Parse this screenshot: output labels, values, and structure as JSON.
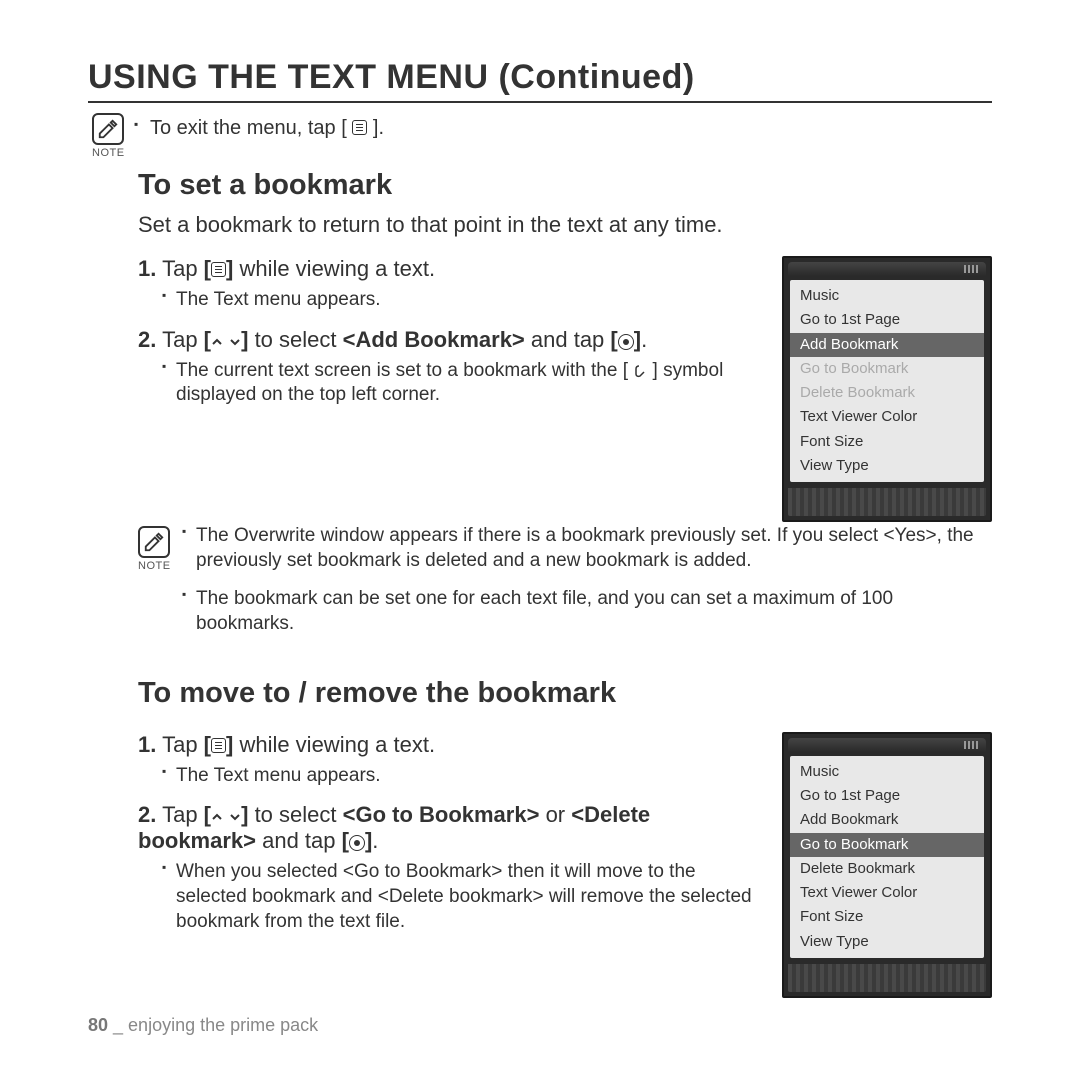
{
  "page_title": "USING THE TEXT MENU (Continued)",
  "top_note": {
    "label": "NOTE",
    "text_parts": [
      "To exit the menu, tap [",
      "]."
    ]
  },
  "section1": {
    "heading": "To set a bookmark",
    "intro": "Set a bookmark to return to that point in the text at any time.",
    "step1_num": "1.",
    "step1_a": "Tap ",
    "step1_b": " while viewing a text.",
    "step1_sub": "The Text menu appears.",
    "step2_num": "2.",
    "step2_a": "Tap ",
    "step2_b": " to select ",
    "step2_bold": "<Add Bookmark>",
    "step2_c": " and tap ",
    "step2_d": ".",
    "step2_sub_a": "The current text screen is set to a bookmark with the [",
    "step2_sub_b": "] symbol displayed on the top left corner.",
    "note_label": "NOTE",
    "note_bullet1": "The Overwrite window appears if there is a bookmark previously set. If you select <Yes>, the previously set bookmark is deleted and a new bookmark is added.",
    "note_bullet2": "The bookmark can be set one for each text file, and you can set a maximum of 100 bookmarks."
  },
  "device1": {
    "items": [
      {
        "label": "Music",
        "state": "normal"
      },
      {
        "label": "Go to 1st Page",
        "state": "normal"
      },
      {
        "label": "Add Bookmark",
        "state": "selected"
      },
      {
        "label": "Go to Bookmark",
        "state": "disabled"
      },
      {
        "label": "Delete Bookmark",
        "state": "disabled"
      },
      {
        "label": "Text Viewer Color",
        "state": "normal"
      },
      {
        "label": "Font Size",
        "state": "normal"
      },
      {
        "label": "View Type",
        "state": "normal"
      }
    ]
  },
  "section2": {
    "heading": "To move to / remove the bookmark",
    "step1_num": "1.",
    "step1_a": "Tap ",
    "step1_b": " while viewing a text.",
    "step1_sub": "The Text menu appears.",
    "step2_num": "2.",
    "step2_a": "Tap ",
    "step2_b": " to select ",
    "step2_bold1": "<Go to Bookmark>",
    "step2_mid": " or ",
    "step2_bold2": "<Delete bookmark>",
    "step2_c": " and tap ",
    "step2_d": ".",
    "step2_sub": "When you selected <Go to Bookmark> then it will move to the selected bookmark and <Delete bookmark> will remove the selected bookmark from the text file."
  },
  "device2": {
    "items": [
      {
        "label": "Music",
        "state": "normal"
      },
      {
        "label": "Go to 1st Page",
        "state": "normal"
      },
      {
        "label": "Add Bookmark",
        "state": "normal"
      },
      {
        "label": "Go to Bookmark",
        "state": "selected"
      },
      {
        "label": "Delete Bookmark",
        "state": "normal"
      },
      {
        "label": "Text Viewer Color",
        "state": "normal"
      },
      {
        "label": "Font Size",
        "state": "normal"
      },
      {
        "label": "View Type",
        "state": "normal"
      }
    ]
  },
  "footer": {
    "page_num": "80",
    "sep": " _ ",
    "chapter": "enjoying the prime pack"
  },
  "colors": {
    "text": "#333333",
    "disabled": "#aaaaaa",
    "selected_bg": "#666666",
    "panel_bg": "#e8e8e8",
    "device_bg": "#2a2a2a"
  }
}
